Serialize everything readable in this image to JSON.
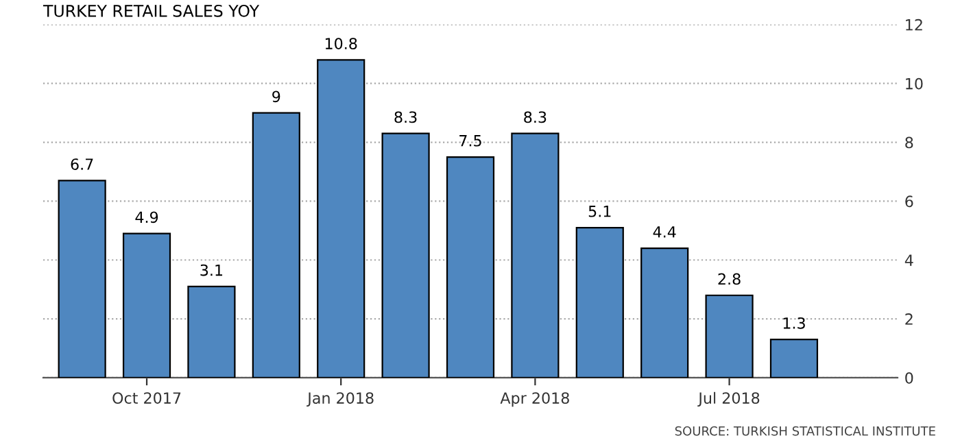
{
  "chart_data": {
    "type": "bar",
    "title": "TURKEY RETAIL SALES YOY",
    "categories": [
      null,
      "Oct 2017",
      null,
      null,
      "Jan 2018",
      null,
      null,
      "Apr 2018",
      null,
      null,
      "Jul 2018",
      null,
      null
    ],
    "values": [
      6.7,
      4.9,
      3.1,
      9,
      10.8,
      8.3,
      7.5,
      8.3,
      5.1,
      4.4,
      2.8,
      1.3,
      null
    ],
    "color": "#4f87c0",
    "ylim": [
      0,
      12
    ],
    "yticks": [
      0,
      2,
      4,
      6,
      8,
      10,
      12
    ],
    "grid": "y",
    "data_labels": true,
    "annotations": [
      "SOURCE: TURKISH STATISTICAL INSTITUTE"
    ]
  }
}
